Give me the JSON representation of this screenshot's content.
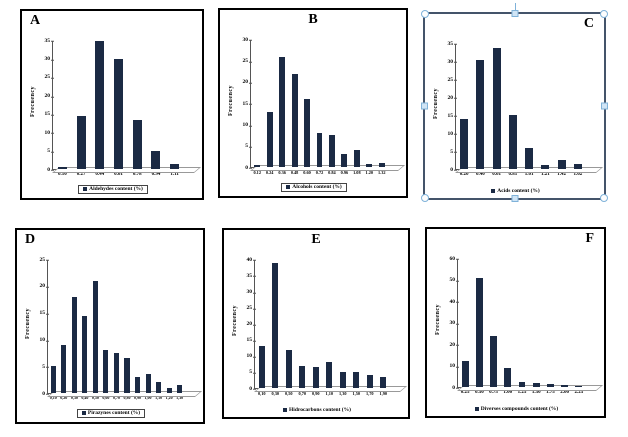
{
  "colors": {
    "bar": "#1b2a44",
    "panel_border": "#000000",
    "selection_border": "#44546a",
    "handle_fill": "#cfe4f5",
    "handle_stroke": "#7fb2d9"
  },
  "chart_data": [
    {
      "type": "bar",
      "panel_letter": "A",
      "letter_pos": "left",
      "title": "",
      "ylabel": "Frecuency",
      "xlabel": "",
      "ylim": [
        0,
        35
      ],
      "ytick_step": 5,
      "categories": [
        "0.10",
        "0.27",
        "0.44",
        "0.61",
        "0.78",
        "0.94",
        "1.11"
      ],
      "values": [
        0.5,
        14.5,
        35,
        30,
        13.5,
        5,
        1.5
      ],
      "legend": "Aldehydes content (%)",
      "legend_position": "bottom",
      "legend_box": true,
      "grid": false,
      "selected": false
    },
    {
      "type": "bar",
      "panel_letter": "B",
      "letter_pos": "center",
      "title": "",
      "ylabel": "Frecuency",
      "xlabel": "",
      "ylim": [
        0,
        30
      ],
      "ytick_step": 5,
      "categories": [
        "0.12",
        "0.24",
        "0.36",
        "0.48",
        "0.60",
        "0.72",
        "0.84",
        "0.96",
        "1.08",
        "1.20",
        "1.32"
      ],
      "values": [
        0.4,
        13,
        26,
        22,
        16,
        8,
        7.5,
        3,
        4,
        0.6,
        1
      ],
      "legend": "Alcohols content (%)",
      "legend_position": "bottom",
      "legend_box": true,
      "grid": false,
      "selected": false
    },
    {
      "type": "bar",
      "panel_letter": "C",
      "letter_pos": "right",
      "title": "",
      "ylabel": "Frecuency",
      "xlabel": "",
      "ylim": [
        0,
        35
      ],
      "ytick_step": 5,
      "categories": [
        "0.20",
        "0.40",
        "0.61",
        "0.81",
        "1.01",
        "1.21",
        "1.42",
        "1.62"
      ],
      "values": [
        14,
        30.5,
        34,
        15,
        6,
        1,
        2.5,
        1.5
      ],
      "legend": "Acids content (%)",
      "legend_position": "bottom",
      "legend_box": false,
      "grid": false,
      "selected": true
    },
    {
      "type": "bar",
      "panel_letter": "D",
      "letter_pos": "left",
      "title": "",
      "ylabel": "Frecuency",
      "xlabel": "",
      "ylim": [
        0,
        25
      ],
      "ytick_step": 5,
      "categories": [
        "0,10",
        "0,20",
        "0,30",
        "0,40",
        "0,50",
        "0,60",
        "0,70",
        "0,80",
        "0,90",
        "1,00",
        "1,10",
        "1,20",
        "1,30"
      ],
      "values": [
        5,
        9,
        18,
        14.5,
        21,
        8,
        7.5,
        6.5,
        3,
        3.5,
        2,
        1,
        1.5
      ],
      "legend": "Pirazynes content (%)",
      "legend_position": "bottom",
      "legend_box": true,
      "grid": false,
      "selected": false
    },
    {
      "type": "bar",
      "panel_letter": "E",
      "letter_pos": "center",
      "title": "",
      "ylabel": "Frecuency",
      "xlabel": "",
      "ylim": [
        0,
        40
      ],
      "ytick_step": 5,
      "categories": [
        "0,10",
        "0,30",
        "0,50",
        "0,70",
        "0,90",
        "1,10",
        "1,30",
        "1,50",
        "1,70",
        "1,90"
      ],
      "values": [
        13,
        39,
        12,
        7,
        6.5,
        8,
        5,
        5,
        4,
        3.5
      ],
      "legend": "Hidrocarbons content (%)",
      "legend_position": "bottom",
      "legend_box": false,
      "grid": false,
      "selected": false
    },
    {
      "type": "bar",
      "panel_letter": "F",
      "letter_pos": "right",
      "title": "",
      "ylabel": "Frecuency",
      "xlabel": "",
      "ylim": [
        0,
        60
      ],
      "ytick_step": 10,
      "categories": [
        "0.25",
        "0.50",
        "0.75",
        "1.00",
        "1.25",
        "1.50",
        "1.75",
        "2.00",
        "2.25"
      ],
      "values": [
        12,
        51,
        24,
        9,
        2.5,
        2,
        1.5,
        1,
        0.5
      ],
      "legend": "Diverses compounds content (%)",
      "legend_position": "bottom",
      "legend_box": false,
      "grid": false,
      "selected": false
    }
  ]
}
